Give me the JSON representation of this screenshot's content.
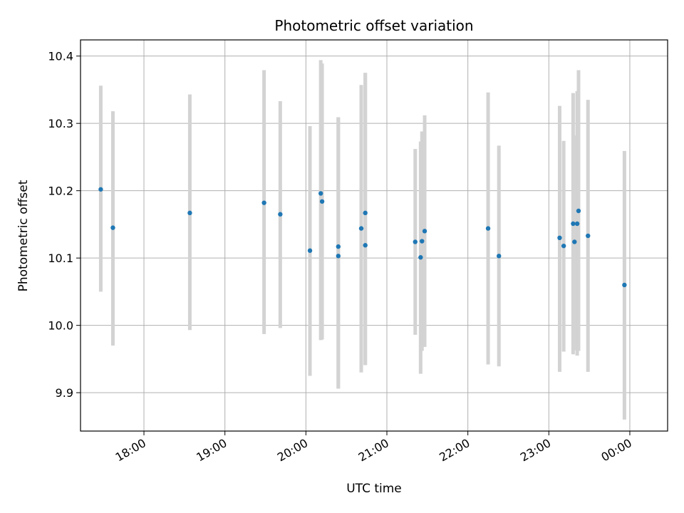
{
  "chart_data": {
    "type": "scatter",
    "title": "Photometric offset variation",
    "xlabel": "UTC time",
    "ylabel": "Photometric offset",
    "grid": true,
    "xlim": [
      "17:13",
      "00:28"
    ],
    "ylim": [
      9.843,
      10.424
    ],
    "x_ticks": [
      "18:00",
      "19:00",
      "20:00",
      "21:00",
      "22:00",
      "23:00",
      "00:00"
    ],
    "y_ticks": [
      "9.9",
      "10.0",
      "10.1",
      "10.2",
      "10.3",
      "10.4"
    ],
    "colors": {
      "marker": "#1f77b4",
      "errorbar": "#d3d3d3",
      "grid": "#b0b0b0"
    },
    "points": [
      {
        "x": "17:28",
        "y": 10.202,
        "ylow": 10.05,
        "yhigh": 10.356
      },
      {
        "x": "17:37",
        "y": 10.145,
        "ylow": 9.97,
        "yhigh": 10.318
      },
      {
        "x": "18:34",
        "y": 10.167,
        "ylow": 9.993,
        "yhigh": 10.343
      },
      {
        "x": "19:29",
        "y": 10.182,
        "ylow": 9.987,
        "yhigh": 10.379
      },
      {
        "x": "19:41",
        "y": 10.165,
        "ylow": 9.996,
        "yhigh": 10.333
      },
      {
        "x": "20:03",
        "y": 10.111,
        "ylow": 9.925,
        "yhigh": 10.296
      },
      {
        "x": "20:11",
        "y": 10.196,
        "ylow": 9.978,
        "yhigh": 10.394
      },
      {
        "x": "20:12",
        "y": 10.184,
        "ylow": 9.979,
        "yhigh": 10.389
      },
      {
        "x": "20:24",
        "y": 10.117,
        "ylow": 9.906,
        "yhigh": 10.309
      },
      {
        "x": "20:24",
        "y": 10.103,
        "ylow": 9.906,
        "yhigh": 10.309
      },
      {
        "x": "20:41",
        "y": 10.144,
        "ylow": 9.93,
        "yhigh": 10.357
      },
      {
        "x": "20:44",
        "y": 10.167,
        "ylow": 9.941,
        "yhigh": 10.375
      },
      {
        "x": "20:44",
        "y": 10.119,
        "ylow": 9.941,
        "yhigh": 10.375
      },
      {
        "x": "21:21",
        "y": 10.124,
        "ylow": 9.986,
        "yhigh": 10.262
      },
      {
        "x": "21:25",
        "y": 10.101,
        "ylow": 9.928,
        "yhigh": 10.273
      },
      {
        "x": "21:26",
        "y": 10.125,
        "ylow": 9.962,
        "yhigh": 10.288
      },
      {
        "x": "21:28",
        "y": 10.14,
        "ylow": 9.968,
        "yhigh": 10.312
      },
      {
        "x": "22:15",
        "y": 10.144,
        "ylow": 9.942,
        "yhigh": 10.346
      },
      {
        "x": "22:23",
        "y": 10.103,
        "ylow": 9.939,
        "yhigh": 10.267
      },
      {
        "x": "23:08",
        "y": 10.13,
        "ylow": 9.931,
        "yhigh": 10.326
      },
      {
        "x": "23:11",
        "y": 10.118,
        "ylow": 9.961,
        "yhigh": 10.274
      },
      {
        "x": "23:18",
        "y": 10.151,
        "ylow": 9.957,
        "yhigh": 10.345
      },
      {
        "x": "23:19",
        "y": 10.124,
        "ylow": 9.963,
        "yhigh": 10.282
      },
      {
        "x": "23:21",
        "y": 10.151,
        "ylow": 9.955,
        "yhigh": 10.348
      },
      {
        "x": "23:22",
        "y": 10.17,
        "ylow": 9.962,
        "yhigh": 10.379
      },
      {
        "x": "23:29",
        "y": 10.133,
        "ylow": 9.931,
        "yhigh": 10.335
      },
      {
        "x": "23:56",
        "y": 10.06,
        "ylow": 9.86,
        "yhigh": 10.259
      }
    ]
  }
}
